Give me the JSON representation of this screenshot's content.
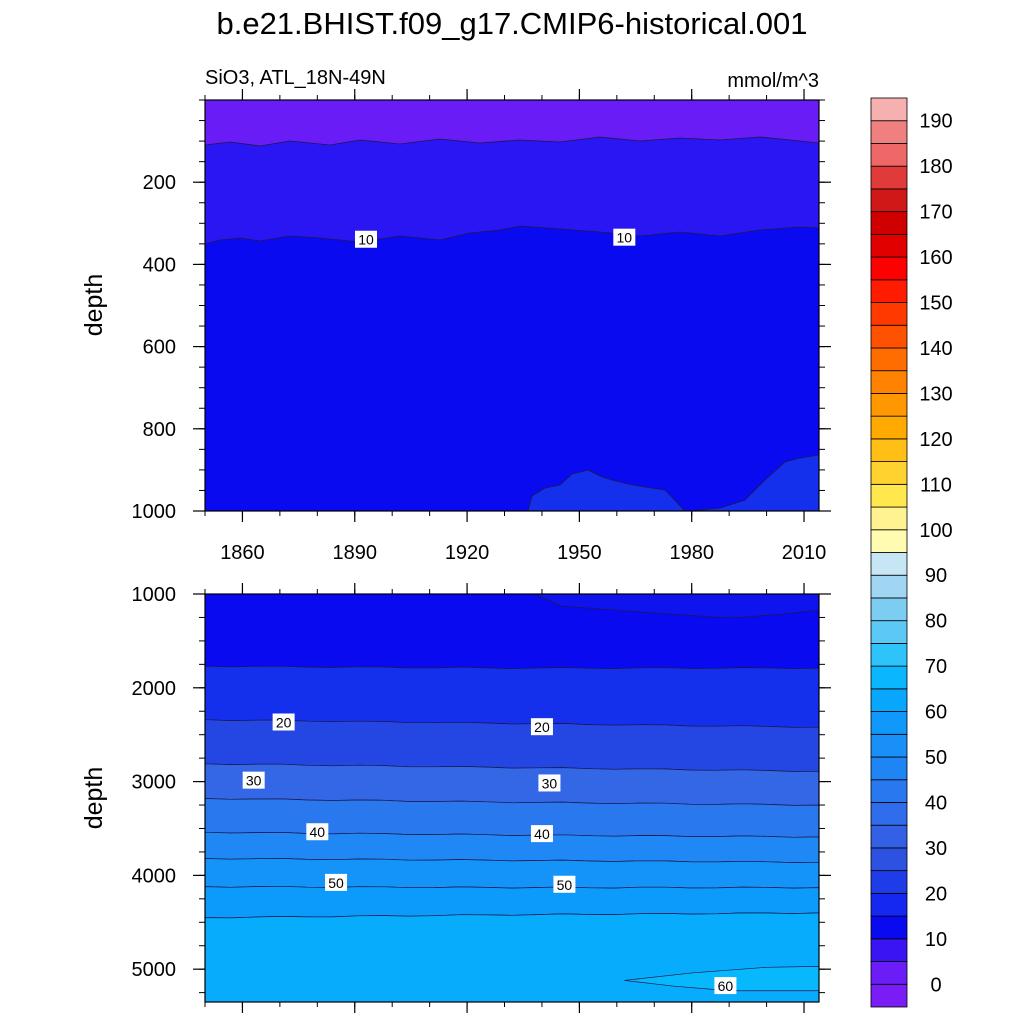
{
  "title": "b.e21.BHIST.f09_g17.CMIP6-historical.001",
  "subtitle_left": "SiO3, ATL_18N-49N",
  "subtitle_right": "mmol/m^3",
  "colors": {
    "upper_top_band": "#6a1cf7",
    "upper_main": "#0a0af0",
    "upper_bottom_patch": "#1530ec"
  },
  "chart_data": [
    {
      "type": "contour",
      "panel": "upper",
      "ylabel": "depth",
      "xlim": [
        1850,
        2014
      ],
      "ylim": [
        1000,
        0
      ],
      "xticks": [
        1860,
        1890,
        1920,
        1950,
        1980,
        2010
      ],
      "xtick_labels": [
        "1860",
        "1890",
        "1920",
        "1950",
        "1980",
        "2010"
      ],
      "yticks": [
        200,
        400,
        600,
        800,
        1000
      ],
      "ytick_labels": [
        "200",
        "400",
        "600",
        "800",
        "1000"
      ],
      "contour_labels": [
        {
          "text": "10",
          "x": 1893,
          "depth": 340
        },
        {
          "text": "10",
          "x": 1962,
          "depth": 335
        }
      ]
    },
    {
      "type": "contour",
      "panel": "lower",
      "ylabel": "depth",
      "xlim": [
        1850,
        2014
      ],
      "ylim": [
        5350,
        1000
      ],
      "xticks": [
        1860,
        1890,
        1920,
        1950,
        1980,
        2010
      ],
      "yticks": [
        1000,
        2000,
        3000,
        4000,
        5000
      ],
      "ytick_labels": [
        "1000",
        "2000",
        "3000",
        "4000",
        "5000"
      ],
      "contour_labels": [
        {
          "text": "20",
          "x": 1871,
          "depth": 2370
        },
        {
          "text": "20",
          "x": 1940,
          "depth": 2420
        },
        {
          "text": "30",
          "x": 1863,
          "depth": 2990
        },
        {
          "text": "30",
          "x": 1942,
          "depth": 3020
        },
        {
          "text": "40",
          "x": 1880,
          "depth": 3540
        },
        {
          "text": "40",
          "x": 1940,
          "depth": 3560
        },
        {
          "text": "50",
          "x": 1885,
          "depth": 4080
        },
        {
          "text": "50",
          "x": 1946,
          "depth": 4100
        },
        {
          "text": "60",
          "x": 1989,
          "depth": 5180
        }
      ],
      "bands": [
        {
          "color": "#0a0af0",
          "from": [
            1000,
            1000,
            1000
          ],
          "to": [
            1770,
            1790,
            1790
          ]
        },
        {
          "color": "#1530ec",
          "from": [
            1770,
            1790,
            1790
          ],
          "to": [
            2340,
            2380,
            2420
          ]
        },
        {
          "color": "#2447e4",
          "from": [
            2340,
            2380,
            2420
          ],
          "to": [
            2810,
            2850,
            2890
          ]
        },
        {
          "color": "#3367e6",
          "from": [
            2810,
            2850,
            2890
          ],
          "to": [
            3180,
            3220,
            3250
          ]
        },
        {
          "color": "#2a78ee",
          "from": [
            3180,
            3220,
            3250
          ],
          "to": [
            3540,
            3570,
            3590
          ]
        },
        {
          "color": "#2088f4",
          "from": [
            3540,
            3570,
            3590
          ],
          "to": [
            3820,
            3840,
            3860
          ]
        },
        {
          "color": "#1494f8",
          "from": [
            3820,
            3840,
            3860
          ],
          "to": [
            4120,
            4130,
            4130
          ]
        },
        {
          "color": "#0c9bfb",
          "from": [
            4120,
            4130,
            4130
          ],
          "to": [
            4450,
            4420,
            4400
          ]
        },
        {
          "color": "#08acfc",
          "from": [
            4450,
            4420,
            4400
          ],
          "to": [
            5350,
            5350,
            5350
          ]
        }
      ]
    },
    {
      "type": "colorbar",
      "min": -5,
      "max": 195,
      "step": 5,
      "labels": [
        "0",
        "10",
        "20",
        "30",
        "40",
        "50",
        "60",
        "70",
        "80",
        "90",
        "100",
        "110",
        "120",
        "130",
        "140",
        "150",
        "160",
        "170",
        "180",
        "190"
      ],
      "label_values": [
        0,
        10,
        20,
        30,
        40,
        50,
        60,
        70,
        80,
        90,
        100,
        110,
        120,
        130,
        140,
        150,
        160,
        170,
        180,
        190
      ],
      "colors": [
        "#7a1cf5",
        "#6b1cf7",
        "#3a14f2",
        "#0a0af0",
        "#1428ef",
        "#1e3ce8",
        "#2d52e0",
        "#3360e4",
        "#2f6ded",
        "#2878f0",
        "#2085f4",
        "#1890f8",
        "#1098fa",
        "#08a6fc",
        "#0ab6fd",
        "#2ec4fb",
        "#5cc8f5",
        "#7dcdf2",
        "#a0d6f3",
        "#c6e6f6",
        "#fffbb0",
        "#fff290",
        "#ffe74e",
        "#ffd230",
        "#ffbf14",
        "#ffaa00",
        "#ff9800",
        "#ff8200",
        "#ff6c00",
        "#ff5200",
        "#ff3a00",
        "#ff1c00",
        "#ff0000",
        "#e00000",
        "#d00000",
        "#d01818",
        "#e03a3a",
        "#ee6868",
        "#f08080",
        "#f7b0b0"
      ]
    }
  ]
}
